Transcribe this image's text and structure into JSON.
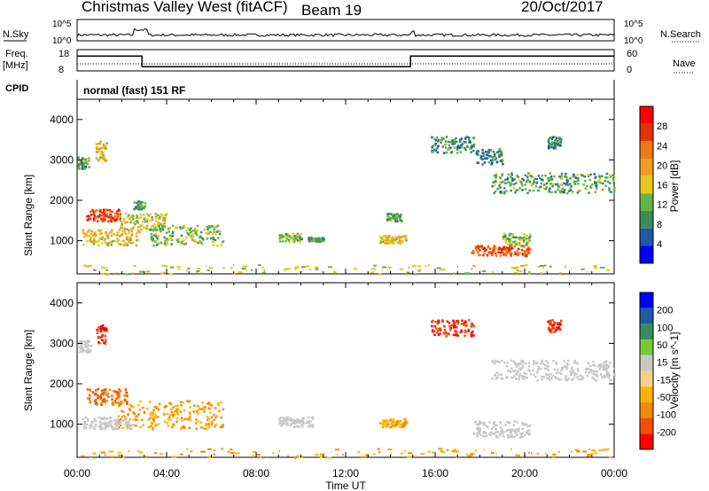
{
  "header": {
    "title": "Christmas Valley West (fitACF)",
    "beam": "Beam 19",
    "date": "20/Oct/2017"
  },
  "status_panels": {
    "nsky_label": "N.Sky",
    "nsearch_label": "N.Search",
    "noise_ticks_left": [
      "10^5",
      "10^0"
    ],
    "noise_ticks_right": [
      "10^5",
      "10^0"
    ],
    "freq_label_1": "Freq.",
    "freq_label_2": "[MHz]",
    "freq_ticks": [
      "18",
      "8"
    ],
    "nave_label": "Nave",
    "nave_ticks": [
      "60",
      "0"
    ],
    "cpid_label": "CPID",
    "cpid_text": "normal (fast) 151 RF"
  },
  "colors": {
    "power": [
      "#0000ff",
      "#1e5aa6",
      "#3c8c5a",
      "#64b446",
      "#e6c81e",
      "#f0a01e",
      "#f07814",
      "#e63200",
      "#ff0000"
    ],
    "velocity": [
      "#ff0000",
      "#f05000",
      "#f08c00",
      "#ffb400",
      "#f0d28c",
      "#c8c8c0",
      "#78c83c",
      "#3c8c5a",
      "#1e5aa6",
      "#0000ff"
    ],
    "ground": "#c8c8c8"
  },
  "chart_data": [
    {
      "type": "heatmap",
      "name": "power",
      "ylabel": "Slant Range [km]",
      "yticks": [
        "1000",
        "2000",
        "3000",
        "4000"
      ],
      "xticks": [
        "00:00",
        "04:00",
        "08:00",
        "12:00",
        "16:00",
        "20:00",
        "00:00"
      ],
      "xlabel": "Time UT",
      "colorbar_label": "Power [dB]",
      "colorbar_ticks": [
        "4",
        "8",
        "12",
        "16",
        "20",
        "24",
        "28"
      ],
      "colorbar_range": [
        0,
        30
      ],
      "ylim": [
        180,
        4500
      ],
      "xlim_hours": [
        0,
        24
      ],
      "echo_regions": [
        {
          "t": [
            0.0,
            0.5
          ],
          "r": [
            2800,
            3100
          ],
          "v": 10
        },
        {
          "t": [
            0.8,
            1.3
          ],
          "r": [
            3000,
            3500
          ],
          "v": 16
        },
        {
          "t": [
            0.4,
            1.9
          ],
          "r": [
            1500,
            1800
          ],
          "v": 24
        },
        {
          "t": [
            0.2,
            2.8
          ],
          "r": [
            900,
            1300
          ],
          "v": 16
        },
        {
          "t": [
            1.8,
            4.0
          ],
          "r": [
            1300,
            1700
          ],
          "v": 14
        },
        {
          "t": [
            3.2,
            6.5
          ],
          "r": [
            900,
            1400
          ],
          "v": 12
        },
        {
          "t": [
            2.5,
            3.0
          ],
          "r": [
            1800,
            2000
          ],
          "v": 10
        },
        {
          "t": [
            9.0,
            10.0
          ],
          "r": [
            1000,
            1200
          ],
          "v": 12
        },
        {
          "t": [
            10.3,
            11.0
          ],
          "r": [
            1000,
            1100
          ],
          "v": 10
        },
        {
          "t": [
            13.5,
            14.7
          ],
          "r": [
            950,
            1150
          ],
          "v": 16
        },
        {
          "t": [
            13.8,
            14.5
          ],
          "r": [
            1500,
            1700
          ],
          "v": 10
        },
        {
          "t": [
            15.8,
            17.7
          ],
          "r": [
            3200,
            3600
          ],
          "v": 8
        },
        {
          "t": [
            17.6,
            20.2
          ],
          "r": [
            650,
            900
          ],
          "v": 24
        },
        {
          "t": [
            19.0,
            20.2
          ],
          "r": [
            900,
            1200
          ],
          "v": 12
        },
        {
          "t": [
            17.8,
            19.0
          ],
          "r": [
            2900,
            3300
          ],
          "v": 8
        },
        {
          "t": [
            18.5,
            24.0
          ],
          "r": [
            2200,
            2700
          ],
          "v": 10
        },
        {
          "t": [
            21.0,
            21.6
          ],
          "r": [
            3300,
            3600
          ],
          "v": 8
        }
      ],
      "ground_band": {
        "r": [
          180,
          420
        ],
        "v": 14
      }
    },
    {
      "type": "heatmap",
      "name": "velocity",
      "ylabel": "Slant Range [km]",
      "yticks": [
        "1000",
        "2000",
        "3000",
        "4000"
      ],
      "xticks": [
        "00:00",
        "04:00",
        "08:00",
        "12:00",
        "16:00",
        "20:00",
        "00:00"
      ],
      "xlabel": "Time UT",
      "colorbar_label": "Velocity [m s^-1]",
      "colorbar_ticks": [
        "200",
        "100",
        "50",
        "15",
        "-15",
        "-50",
        "-100",
        "-200"
      ],
      "ylim": [
        180,
        4500
      ],
      "xlim_hours": [
        0,
        24
      ],
      "echo_regions": [
        {
          "t": [
            0.0,
            0.6
          ],
          "r": [
            2800,
            3100
          ],
          "v": 0
        },
        {
          "t": [
            0.8,
            1.3
          ],
          "r": [
            3000,
            3500
          ],
          "v": -200
        },
        {
          "t": [
            0.4,
            2.2
          ],
          "r": [
            1500,
            1900
          ],
          "v": -100
        },
        {
          "t": [
            1.8,
            6.5
          ],
          "r": [
            900,
            1600
          ],
          "v": -50
        },
        {
          "t": [
            0.2,
            2.5
          ],
          "r": [
            900,
            1200
          ],
          "v": 0
        },
        {
          "t": [
            9.0,
            10.5
          ],
          "r": [
            950,
            1200
          ],
          "v": 0
        },
        {
          "t": [
            13.5,
            14.7
          ],
          "r": [
            950,
            1150
          ],
          "v": -50
        },
        {
          "t": [
            15.8,
            17.7
          ],
          "r": [
            3200,
            3600
          ],
          "v": -200
        },
        {
          "t": [
            17.6,
            20.2
          ],
          "r": [
            700,
            1100
          ],
          "v": 0
        },
        {
          "t": [
            18.5,
            24.0
          ],
          "r": [
            2100,
            2600
          ],
          "v": 0
        },
        {
          "t": [
            21.0,
            21.6
          ],
          "r": [
            3300,
            3600
          ],
          "v": -200
        }
      ],
      "ground_band": {
        "r": [
          180,
          420
        ],
        "v": -50
      }
    }
  ],
  "timeline": {
    "noise_search": [
      [
        0,
        0.2
      ],
      [
        2.6,
        0.6
      ],
      [
        3.2,
        0.2
      ],
      [
        15.0,
        0.4
      ],
      [
        24,
        0.2
      ]
    ],
    "freq_mhz": [
      [
        0,
        15
      ],
      [
        2.9,
        15
      ],
      [
        2.9,
        10
      ],
      [
        14.9,
        10
      ],
      [
        14.9,
        15
      ],
      [
        24,
        15
      ]
    ],
    "nave": [
      [
        0,
        30
      ],
      [
        24,
        30
      ]
    ]
  }
}
